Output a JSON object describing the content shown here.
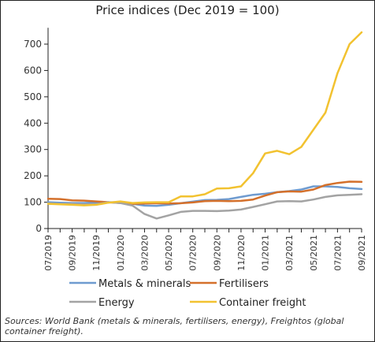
{
  "chart_data": {
    "type": "line",
    "title": "Price indices (Dec 2019 = 100)",
    "xlabel": "",
    "ylabel": "",
    "ylim": [
      0,
      750
    ],
    "yticks": [
      0,
      100,
      200,
      300,
      400,
      500,
      600,
      700
    ],
    "x": [
      "07/2019",
      "08/2019",
      "09/2019",
      "10/2019",
      "11/2019",
      "12/2019",
      "01/2020",
      "02/2020",
      "03/2020",
      "04/2020",
      "05/2020",
      "06/2020",
      "07/2020",
      "08/2020",
      "09/2020",
      "10/2020",
      "11/2020",
      "12/2020",
      "01/2021",
      "02/2021",
      "03/2021",
      "04/2021",
      "05/2021",
      "06/2021",
      "07/2021",
      "08/2021",
      "09/2021"
    ],
    "xtick_labels": [
      "07/2019",
      "09/2019",
      "11/2019",
      "01/2020",
      "03/2020",
      "05/2020",
      "07/2020",
      "09/2020",
      "11/2020",
      "01/2021",
      "03/2021",
      "05/2021",
      "07/2021",
      "09/2021"
    ],
    "series": [
      {
        "name": "Metals & minerals",
        "color": "#6e9bd0",
        "values": [
          100,
          98,
          97,
          97,
          99,
          100,
          100,
          94,
          87,
          86,
          90,
          96,
          102,
          108,
          109,
          112,
          120,
          128,
          132,
          138,
          142,
          148,
          160,
          160,
          158,
          153,
          150
        ]
      },
      {
        "name": "Fertilisers",
        "color": "#d4702b",
        "values": [
          113,
          112,
          107,
          106,
          103,
          100,
          97,
          94,
          95,
          96,
          95,
          96,
          99,
          104,
          105,
          104,
          105,
          110,
          125,
          138,
          141,
          140,
          148,
          165,
          173,
          178,
          177
        ]
      },
      {
        "name": "Energy",
        "color": "#a3a3a3",
        "values": [
          95,
          93,
          94,
          92,
          92,
          100,
          97,
          87,
          55,
          38,
          50,
          63,
          67,
          67,
          66,
          68,
          72,
          82,
          92,
          103,
          104,
          103,
          110,
          120,
          126,
          128,
          130
        ]
      },
      {
        "name": "Container freight",
        "color": "#f2c230",
        "values": [
          94,
          92,
          90,
          88,
          90,
          98,
          103,
          97,
          99,
          100,
          100,
          122,
          122,
          130,
          152,
          153,
          160,
          210,
          285,
          295,
          282,
          310,
          375,
          440,
          590,
          700,
          745
        ]
      }
    ],
    "legend_position": "bottom",
    "grid": false
  },
  "source_note": "Sources: World Bank (metals & minerals, fertilisers, energy), Freightos (global container freight)."
}
